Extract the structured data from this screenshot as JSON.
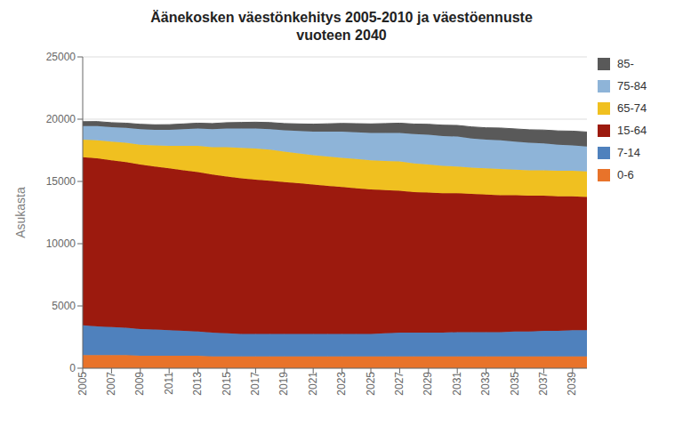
{
  "chart_data": {
    "type": "area",
    "title": "Äänekosken väestönkehitys 2005-2010 ja väestöennuste\nvuoteen 2040",
    "y_label": "Asukasta",
    "x": [
      2005,
      2006,
      2007,
      2008,
      2009,
      2010,
      2011,
      2012,
      2013,
      2014,
      2015,
      2016,
      2017,
      2018,
      2019,
      2020,
      2021,
      2022,
      2023,
      2024,
      2025,
      2026,
      2027,
      2028,
      2029,
      2030,
      2031,
      2032,
      2033,
      2034,
      2035,
      2036,
      2037,
      2038,
      2039,
      2040
    ],
    "series": [
      {
        "name": "0-6",
        "color": "#E8732A",
        "values": [
          1050,
          1050,
          1050,
          1050,
          1000,
          1000,
          1000,
          1000,
          1000,
          950,
          950,
          950,
          950,
          950,
          950,
          950,
          950,
          950,
          950,
          950,
          950,
          950,
          950,
          950,
          950,
          950,
          950,
          950,
          950,
          950,
          950,
          950,
          950,
          950,
          950,
          950
        ]
      },
      {
        "name": "7-14",
        "color": "#4F81BD",
        "values": [
          2400,
          2300,
          2250,
          2200,
          2150,
          2100,
          2050,
          2000,
          1950,
          1900,
          1850,
          1800,
          1800,
          1800,
          1800,
          1800,
          1800,
          1800,
          1800,
          1800,
          1800,
          1850,
          1900,
          1900,
          1900,
          1900,
          1950,
          1950,
          1950,
          1950,
          2000,
          2000,
          2050,
          2050,
          2100,
          2100
        ]
      },
      {
        "name": "15-64",
        "color": "#9C1A0E",
        "values": [
          13500,
          13500,
          13400,
          13300,
          13200,
          13100,
          13000,
          12900,
          12800,
          12700,
          12600,
          12500,
          12400,
          12300,
          12200,
          12100,
          12000,
          11900,
          11800,
          11700,
          11600,
          11500,
          11400,
          11300,
          11250,
          11200,
          11150,
          11100,
          11050,
          11000,
          10950,
          10900,
          10850,
          10800,
          10750,
          10700
        ]
      },
      {
        "name": "65-74",
        "color": "#F0C020",
        "values": [
          1400,
          1450,
          1500,
          1550,
          1600,
          1700,
          1800,
          1950,
          2100,
          2200,
          2350,
          2450,
          2500,
          2500,
          2450,
          2400,
          2350,
          2350,
          2350,
          2350,
          2350,
          2350,
          2350,
          2300,
          2250,
          2200,
          2150,
          2100,
          2100,
          2100,
          2050,
          2050,
          2050,
          2050,
          2050,
          2050
        ]
      },
      {
        "name": "75-84",
        "color": "#8EB4D8",
        "values": [
          1100,
          1150,
          1150,
          1200,
          1250,
          1250,
          1300,
          1350,
          1400,
          1450,
          1500,
          1550,
          1600,
          1650,
          1700,
          1800,
          1900,
          2000,
          2100,
          2150,
          2200,
          2250,
          2300,
          2350,
          2400,
          2400,
          2400,
          2350,
          2300,
          2300,
          2250,
          2200,
          2150,
          2100,
          2050,
          2000
        ]
      },
      {
        "name": "85-",
        "color": "#595959",
        "values": [
          350,
          360,
          370,
          380,
          390,
          400,
          410,
          420,
          430,
          450,
          470,
          490,
          510,
          530,
          550,
          570,
          600,
          630,
          660,
          690,
          720,
          750,
          780,
          810,
          840,
          870,
          900,
          930,
          960,
          990,
          1020,
          1050,
          1080,
          1110,
          1140,
          1170
        ]
      }
    ],
    "stacked": true,
    "xlim": [
      2005,
      2040
    ],
    "xticks": [
      2005,
      2007,
      2009,
      2011,
      2013,
      2015,
      2017,
      2019,
      2021,
      2023,
      2025,
      2027,
      2029,
      2031,
      2033,
      2035,
      2037,
      2039
    ],
    "ylim": [
      0,
      25000
    ],
    "yticks": [
      0,
      5000,
      10000,
      15000,
      20000,
      25000
    ],
    "grid": true,
    "legend": "right"
  }
}
